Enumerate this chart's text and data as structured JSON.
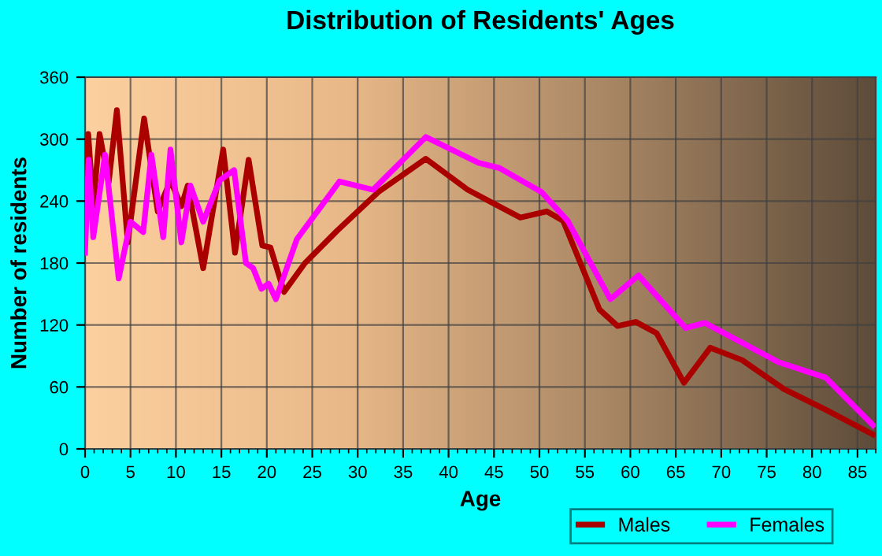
{
  "chart_data": {
    "type": "line",
    "title": "Distribution of Residents' Ages",
    "xlabel": "Age",
    "ylabel": "Number of residents",
    "xlim": [
      0,
      87
    ],
    "xticks": [
      0,
      5,
      10,
      15,
      20,
      25,
      30,
      35,
      40,
      45,
      50,
      55,
      60,
      65,
      70,
      75,
      80,
      85
    ],
    "ylim": [
      0,
      360
    ],
    "yticks": [
      0,
      60,
      120,
      180,
      240,
      300,
      360
    ],
    "grid": true,
    "legend": "bottom right",
    "series": [
      {
        "name": "Males",
        "color": "#aa0000",
        "x": [
          0,
          0.35,
          0.9,
          1.6,
          2.6,
          3.5,
          4.7,
          6.5,
          8,
          9.4,
          10.6,
          11.3,
          13,
          15.2,
          16.5,
          18,
          19.5,
          20.4,
          21.9,
          24.2,
          27.7,
          32.3,
          37.5,
          42.1,
          47.9,
          50.8,
          52.6,
          56.6,
          58.6,
          60.6,
          62.9,
          65.9,
          68.8,
          72.3,
          76.9,
          81.5,
          86.7
        ],
        "values": [
          210,
          305,
          235,
          305,
          258,
          328,
          200,
          320,
          230,
          260,
          235,
          255,
          175,
          290,
          190,
          280,
          197,
          195,
          152,
          180,
          211,
          249,
          281,
          251,
          224,
          230,
          221,
          135,
          119,
          123,
          112,
          64,
          98,
          86,
          58,
          38,
          14
        ]
      },
      {
        "name": "Females",
        "color": "#ff00ff",
        "x": [
          0,
          0.4,
          0.9,
          2.2,
          3.7,
          5,
          6.4,
          7.3,
          8.6,
          9.4,
          10.6,
          11.6,
          13,
          14.8,
          16.4,
          17.7,
          18.5,
          19.4,
          20.2,
          21,
          23.3,
          28,
          31.7,
          37.5,
          43.3,
          45.6,
          50.2,
          53.1,
          57.8,
          60.9,
          66.1,
          68.2,
          76.3,
          81.5,
          86.7
        ],
        "values": [
          190,
          280,
          205,
          285,
          165,
          220,
          210,
          285,
          205,
          290,
          200,
          255,
          220,
          260,
          270,
          180,
          175,
          155,
          160,
          145,
          203,
          259,
          251,
          302,
          277,
          272,
          249,
          221,
          145,
          168,
          117,
          122,
          84,
          69,
          23
        ]
      }
    ]
  }
}
